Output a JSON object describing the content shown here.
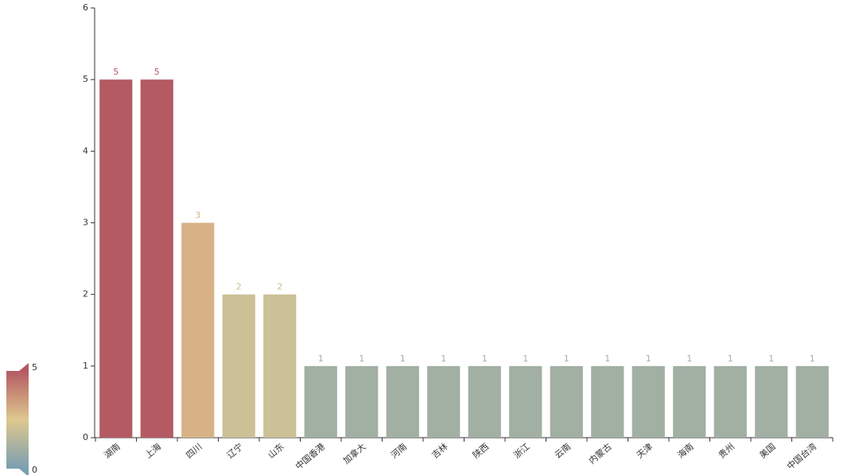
{
  "chart_data": {
    "type": "bar",
    "categories": [
      "湖南",
      "上海",
      "四川",
      "辽宁",
      "山东",
      "中国香港",
      "加拿大",
      "河南",
      "吉林",
      "陕西",
      "浙江",
      "云南",
      "内蒙古",
      "天津",
      "海南",
      "贵州",
      "美国",
      "中国台湾"
    ],
    "values": [
      5,
      5,
      3,
      2,
      2,
      1,
      1,
      1,
      1,
      1,
      1,
      1,
      1,
      1,
      1,
      1,
      1,
      1
    ],
    "ylim": [
      0,
      6
    ],
    "yticks": [
      0,
      1,
      2,
      3,
      4,
      5,
      6
    ],
    "visual_map": {
      "min": 0,
      "max": 5,
      "colors": [
        "#7a9fb0",
        "#dfc88f",
        "#b45a62"
      ]
    }
  }
}
